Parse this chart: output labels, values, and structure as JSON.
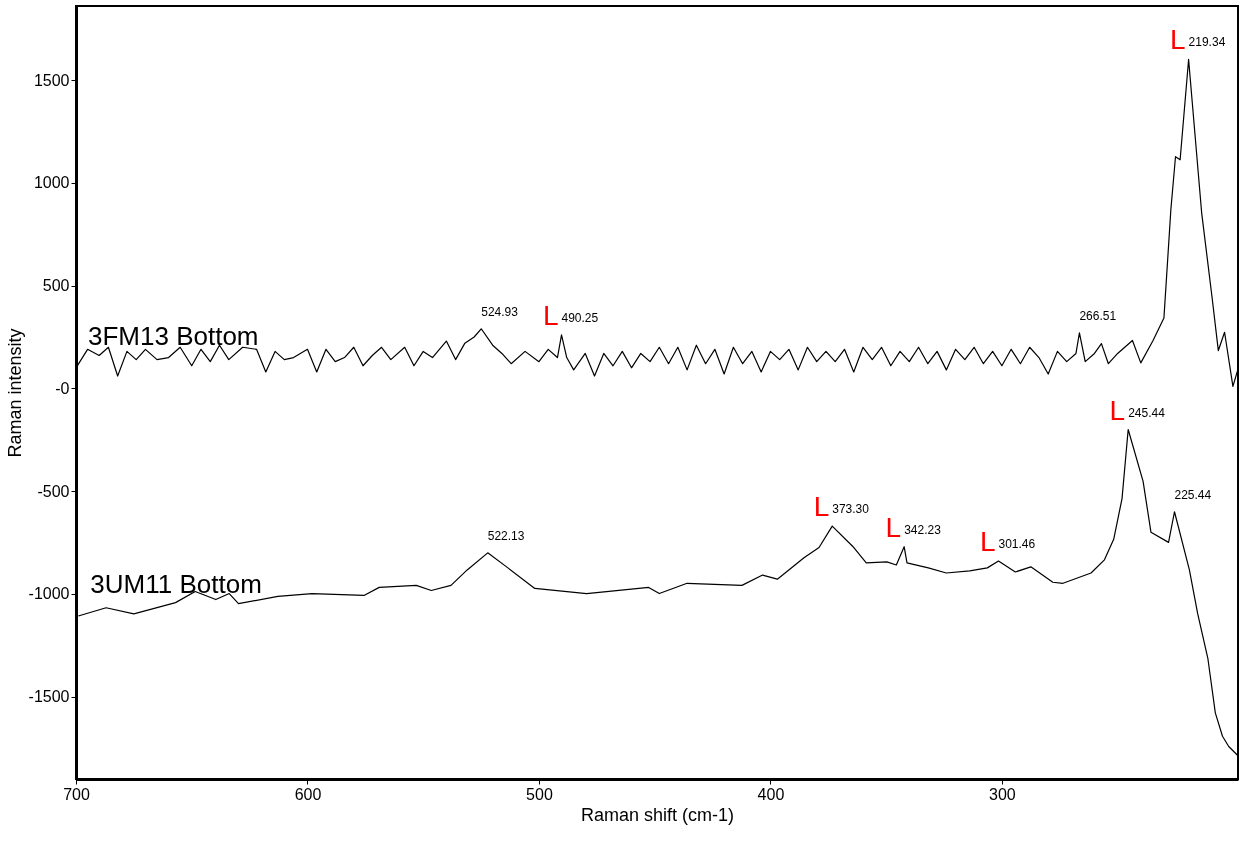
{
  "chart_data": {
    "type": "line",
    "xlabel": "Raman shift (cm-1)",
    "ylabel": "Raman intensity",
    "xlim": [
      700,
      198
    ],
    "ylim": [
      -1900,
      1860
    ],
    "xticks": [
      700,
      600,
      500,
      400,
      300
    ],
    "yticks": [
      1500,
      1000,
      500,
      {
        "value": 0,
        "label": "-0"
      },
      -500,
      -1000,
      -1500
    ],
    "grid": false,
    "legend": false,
    "marker": "none",
    "line_style": "solid",
    "series": [
      {
        "name": "3FM13 Bottom",
        "color": "#000000",
        "x": [
          700,
          695,
          690,
          686,
          682,
          678,
          674,
          670,
          665,
          660,
          655,
          650,
          646,
          642,
          638,
          634,
          628,
          622,
          618,
          614,
          610,
          606,
          600,
          596,
          592,
          588,
          584,
          580,
          576,
          572,
          568,
          564,
          558,
          554,
          550,
          546,
          540,
          536,
          532,
          528,
          524.93,
          520,
          516,
          512,
          506,
          500,
          496,
          492,
          490.25,
          488,
          485,
          480,
          476,
          472,
          468,
          464,
          460,
          456,
          452,
          448,
          444,
          440,
          436,
          432,
          428,
          424,
          420,
          416,
          412,
          408,
          404,
          400,
          396,
          392,
          388,
          384,
          380,
          376,
          372,
          368,
          364,
          360,
          356,
          352,
          348,
          344,
          340,
          336,
          332,
          328,
          324,
          320,
          316,
          312,
          308,
          304,
          300,
          296,
          292,
          288,
          284,
          280,
          276,
          272,
          268,
          266.51,
          264,
          260,
          257,
          254,
          250,
          243.6,
          240,
          234.7,
          230,
          227,
          225,
          223,
          219.34,
          213.7,
          209.2,
          206.5,
          203.8,
          200.2,
          198
        ],
        "values": [
          100,
          190,
          160,
          200,
          60,
          180,
          140,
          190,
          140,
          150,
          200,
          110,
          190,
          130,
          210,
          140,
          200,
          190,
          80,
          180,
          140,
          150,
          190,
          80,
          190,
          130,
          150,
          200,
          110,
          160,
          200,
          140,
          200,
          110,
          180,
          150,
          230,
          140,
          220,
          250,
          290,
          210,
          170,
          120,
          180,
          130,
          190,
          150,
          260,
          150,
          90,
          170,
          60,
          170,
          110,
          180,
          100,
          170,
          130,
          200,
          120,
          200,
          90,
          210,
          120,
          190,
          70,
          200,
          120,
          180,
          80,
          180,
          140,
          190,
          90,
          200,
          130,
          180,
          130,
          190,
          80,
          200,
          140,
          200,
          110,
          180,
          130,
          200,
          120,
          180,
          90,
          190,
          140,
          200,
          120,
          180,
          110,
          190,
          120,
          200,
          150,
          70,
          180,
          130,
          170,
          270,
          130,
          170,
          218,
          120,
          170,
          233,
          124,
          233,
          342,
          870,
          1127,
          1112,
          1600,
          854,
          442,
          184,
          273,
          10,
          94
        ]
      },
      {
        "name": "3UM11 Bottom",
        "color": "#000000",
        "x": [
          699,
          687,
          675,
          657,
          648.5,
          639.6,
          633.8,
          629.8,
          612.8,
          598,
          575.6,
          569,
          553,
          546.5,
          538,
          531,
          522.13,
          513.4,
          501.8,
          479.4,
          452.6,
          448,
          436,
          412.3,
          403.4,
          397,
          385.5,
          379,
          373.3,
          364.4,
          358.6,
          349.7,
          345.6,
          342.23,
          341,
          331.8,
          324,
          313.9,
          306.3,
          301.46,
          294.2,
          287.5,
          278,
          273.6,
          261.5,
          255.7,
          251.7,
          248.1,
          245.44,
          239,
          235.6,
          228,
          225.44,
          219,
          215.4,
          211,
          207.8,
          204.7,
          202,
          198
        ],
        "values": [
          -1107,
          -1067,
          -1097,
          -1042,
          -988,
          -1027,
          -998,
          -1047,
          -1012,
          -998,
          -1007,
          -968,
          -958,
          -983,
          -958,
          -883,
          -800,
          -873,
          -973,
          -998,
          -968,
          -998,
          -948,
          -958,
          -908,
          -928,
          -824,
          -774,
          -670,
          -769,
          -849,
          -844,
          -859,
          -770,
          -849,
          -873,
          -898,
          -888,
          -873,
          -840,
          -893,
          -868,
          -943,
          -948,
          -898,
          -834,
          -734,
          -536,
          -200,
          -452,
          -700,
          -749,
          -600,
          -883,
          -1097,
          -1315,
          -1578,
          -1692,
          -1742,
          -1787
        ]
      }
    ],
    "annotations": [
      {
        "text": "524.93",
        "x": 524.93,
        "y": 290
      },
      {
        "text": "L",
        "x": 490.25,
        "y": 260
      },
      {
        "text": "490.25",
        "x": 490.25,
        "y": 260
      },
      {
        "text": "266.51",
        "x": 266.51,
        "y": 270
      },
      {
        "text": "L",
        "x": 219.34,
        "y": 1600
      },
      {
        "text": "219.34",
        "x": 219.34,
        "y": 1600
      },
      {
        "text": "522.13",
        "x": 522.13,
        "y": -800
      },
      {
        "text": "L",
        "x": 373.3,
        "y": -670
      },
      {
        "text": "373.30",
        "x": 373.3,
        "y": -670
      },
      {
        "text": "L",
        "x": 342.23,
        "y": -770
      },
      {
        "text": "342.23",
        "x": 342.23,
        "y": -770
      },
      {
        "text": "L",
        "x": 301.46,
        "y": -840
      },
      {
        "text": "301.46",
        "x": 301.46,
        "y": -840
      },
      {
        "text": "L",
        "x": 245.44,
        "y": -200
      },
      {
        "text": "245.44",
        "x": 245.44,
        "y": -200
      },
      {
        "text": "225.44",
        "x": 225.44,
        "y": -600
      }
    ]
  }
}
